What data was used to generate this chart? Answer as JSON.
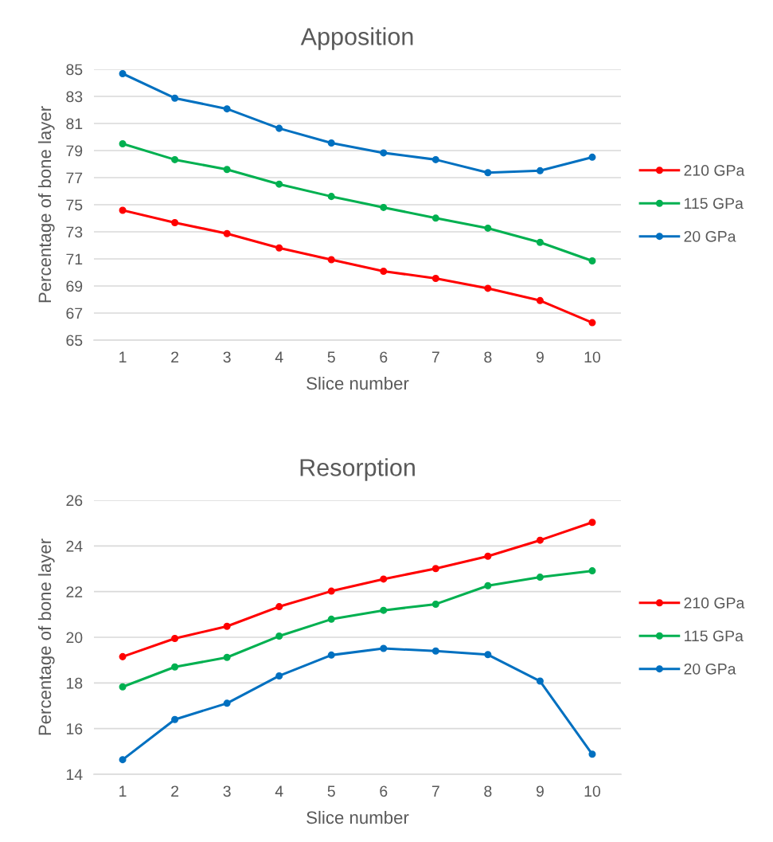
{
  "chart_data": [
    {
      "type": "line",
      "title": "Apposition",
      "xlabel": "Slice number",
      "ylabel": "Percentage of bone layer",
      "categories": [
        "1",
        "2",
        "3",
        "4",
        "5",
        "6",
        "7",
        "8",
        "9",
        "10"
      ],
      "ylim": [
        65,
        85
      ],
      "yticks": [
        65,
        67,
        69,
        71,
        73,
        75,
        77,
        79,
        81,
        83,
        85
      ],
      "grid": "y",
      "legend": "right",
      "marker": "circle",
      "series": [
        {
          "name": "210 GPa",
          "color": "#ff0000",
          "values": [
            74.59,
            73.68,
            72.87,
            71.81,
            70.94,
            70.09,
            69.56,
            68.83,
            67.92,
            66.29
          ]
        },
        {
          "name": "115 GPa",
          "color": "#00b050",
          "values": [
            79.5,
            78.33,
            77.6,
            76.52,
            75.61,
            74.8,
            74.01,
            73.27,
            72.22,
            70.85
          ]
        },
        {
          "name": "20 GPa",
          "color": "#0070c0",
          "values": [
            84.68,
            82.87,
            82.08,
            80.64,
            79.56,
            78.83,
            78.33,
            77.37,
            77.51,
            78.51
          ]
        }
      ]
    },
    {
      "type": "line",
      "title": "Resorption",
      "xlabel": "Slice number",
      "ylabel": "Percentage of bone layer",
      "categories": [
        "1",
        "2",
        "3",
        "4",
        "5",
        "6",
        "7",
        "8",
        "9",
        "10"
      ],
      "ylim": [
        14,
        26
      ],
      "yticks": [
        14,
        16,
        18,
        20,
        22,
        24,
        26
      ],
      "grid": "y",
      "legend": "right",
      "marker": "circle",
      "series": [
        {
          "name": "210 GPa",
          "color": "#ff0000",
          "values": [
            19.15,
            19.95,
            20.48,
            21.34,
            22.02,
            22.55,
            23.01,
            23.55,
            24.25,
            25.03
          ]
        },
        {
          "name": "115 GPa",
          "color": "#00b050",
          "values": [
            17.83,
            18.7,
            19.12,
            20.05,
            20.79,
            21.18,
            21.45,
            22.26,
            22.63,
            22.91
          ]
        },
        {
          "name": "20 GPa",
          "color": "#0070c0",
          "values": [
            14.64,
            16.4,
            17.11,
            18.31,
            19.22,
            19.51,
            19.4,
            19.24,
            18.08,
            14.88
          ]
        }
      ]
    }
  ]
}
